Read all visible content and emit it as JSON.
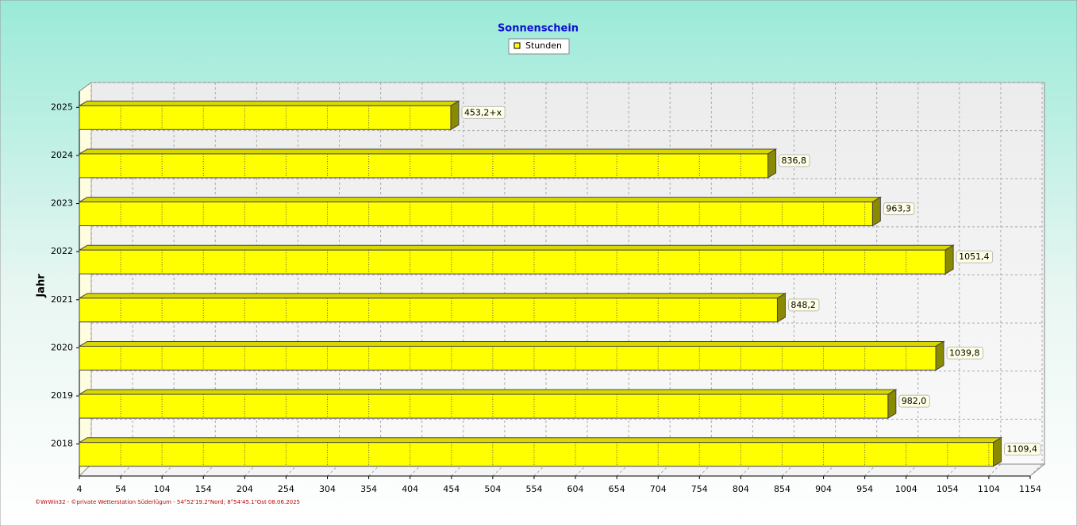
{
  "chart_data": {
    "type": "bar",
    "orientation": "horizontal",
    "title": "Sonnenschein",
    "y_label": "Jahr",
    "categories": [
      "2025",
      "2024",
      "2023",
      "2022",
      "2021",
      "2020",
      "2019",
      "2018"
    ],
    "series": [
      {
        "name": "Stunden",
        "color": "#ffff00",
        "values": [
          453.2,
          836.8,
          963.3,
          1051.4,
          848.2,
          1039.8,
          982.0,
          1109.4
        ],
        "value_labels": [
          "453,2+x",
          "836,8",
          "963,3",
          "1051,4",
          "848,2",
          "1039,8",
          "982,0",
          "1109,4"
        ]
      }
    ],
    "xlim": [
      4,
      1154
    ],
    "xticks": [
      4,
      54,
      104,
      154,
      204,
      254,
      304,
      354,
      404,
      454,
      504,
      554,
      604,
      654,
      704,
      754,
      804,
      854,
      904,
      954,
      1004,
      1054,
      1104,
      1154
    ],
    "grid": true,
    "footer": "©WrWin32 - ©private Wetterstation Süderlügum - 54°52'19.2\"Nord; 8°54'45.1\"Ost 08.06.2025"
  }
}
